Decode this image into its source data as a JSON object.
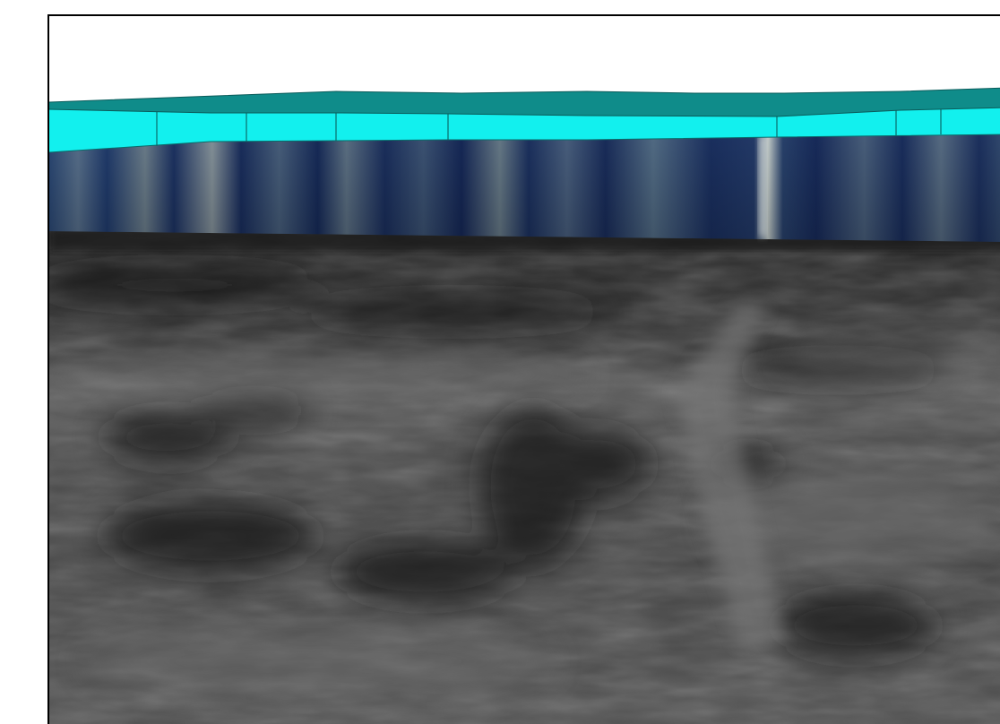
{
  "scene": {
    "background": "#ffffff",
    "frame_color": "#000000",
    "colors": {
      "roof_top": "#0f8c8a",
      "wall_band": "#12f0ee",
      "wall_lines": "#0a5b5a",
      "curtain_dark": "#182f64",
      "curtain_light": "#b8c4c6",
      "ground_dark": "#1e1e1e",
      "ground_mid": "#4a4a4a",
      "ground_light": "#6e6e6e"
    }
  }
}
